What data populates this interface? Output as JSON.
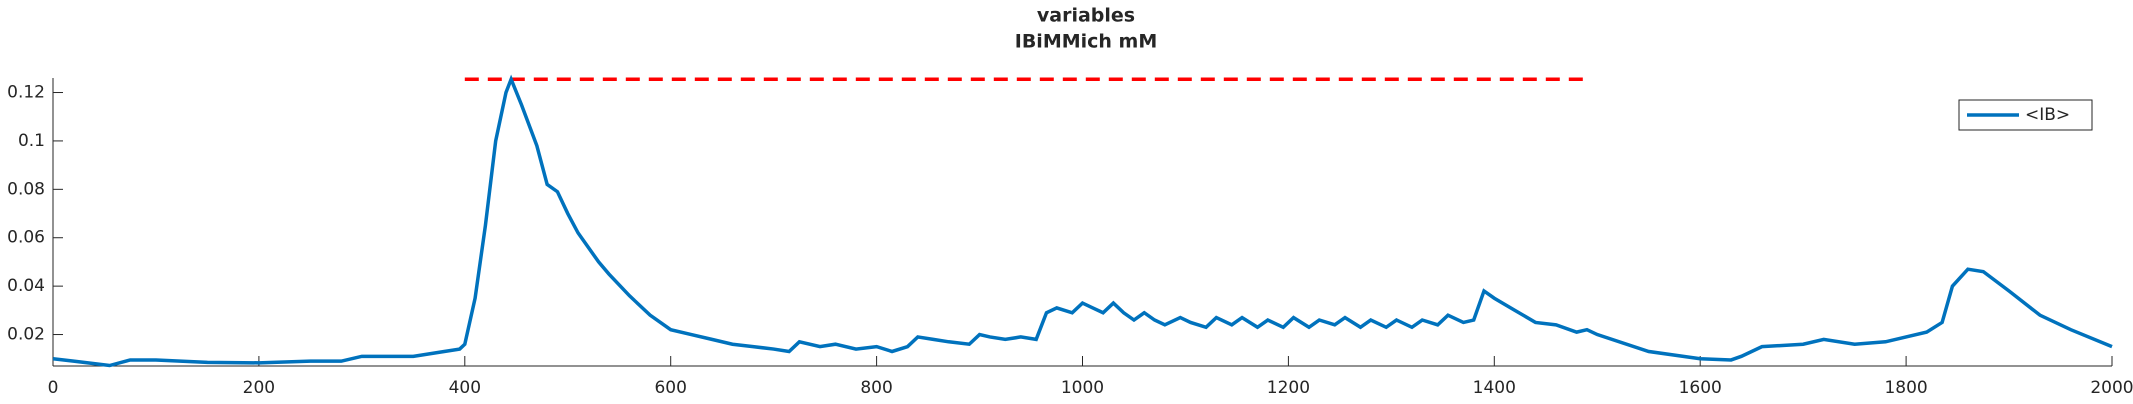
{
  "chart_data": {
    "type": "line",
    "title": "variables",
    "subtitle": "IBiMMich mM",
    "x": [
      0,
      20,
      40,
      55,
      75,
      100,
      150,
      200,
      250,
      280,
      300,
      350,
      380,
      395,
      400,
      410,
      420,
      430,
      440,
      445,
      455,
      470,
      480,
      490,
      500,
      510,
      530,
      540,
      560,
      580,
      600,
      620,
      640,
      660,
      680,
      700,
      715,
      725,
      745,
      760,
      780,
      800,
      815,
      830,
      840,
      855,
      870,
      890,
      900,
      910,
      925,
      940,
      955,
      965,
      975,
      990,
      1000,
      1010,
      1020,
      1030,
      1040,
      1050,
      1060,
      1070,
      1080,
      1095,
      1105,
      1120,
      1130,
      1145,
      1155,
      1170,
      1180,
      1195,
      1205,
      1220,
      1230,
      1245,
      1255,
      1270,
      1280,
      1295,
      1305,
      1320,
      1330,
      1345,
      1355,
      1370,
      1380,
      1390,
      1400,
      1420,
      1440,
      1460,
      1480,
      1490,
      1500,
      1550,
      1600,
      1630,
      1640,
      1660,
      1700,
      1720,
      1750,
      1780,
      1800,
      1820,
      1835,
      1845,
      1860,
      1875,
      1900,
      1930,
      1960,
      2000
    ],
    "series": [
      {
        "name": "<IB>",
        "color": "#0072bd",
        "values": [
          0.01,
          0.009,
          0.008,
          0.0072,
          0.0095,
          0.0095,
          0.0085,
          0.0083,
          0.009,
          0.009,
          0.011,
          0.011,
          0.013,
          0.014,
          0.016,
          0.035,
          0.065,
          0.1,
          0.12,
          0.1255,
          0.115,
          0.098,
          0.082,
          0.079,
          0.07,
          0.062,
          0.05,
          0.045,
          0.036,
          0.028,
          0.022,
          0.02,
          0.018,
          0.016,
          0.015,
          0.014,
          0.013,
          0.017,
          0.015,
          0.016,
          0.014,
          0.015,
          0.013,
          0.015,
          0.019,
          0.018,
          0.017,
          0.016,
          0.02,
          0.019,
          0.018,
          0.019,
          0.018,
          0.029,
          0.031,
          0.029,
          0.033,
          0.031,
          0.029,
          0.033,
          0.029,
          0.026,
          0.029,
          0.026,
          0.024,
          0.027,
          0.025,
          0.023,
          0.027,
          0.024,
          0.027,
          0.023,
          0.026,
          0.023,
          0.027,
          0.023,
          0.026,
          0.024,
          0.027,
          0.023,
          0.026,
          0.023,
          0.026,
          0.023,
          0.026,
          0.024,
          0.028,
          0.025,
          0.026,
          0.038,
          0.035,
          0.03,
          0.025,
          0.024,
          0.021,
          0.022,
          0.02,
          0.013,
          0.01,
          0.0095,
          0.011,
          0.015,
          0.016,
          0.018,
          0.016,
          0.017,
          0.019,
          0.021,
          0.025,
          0.04,
          0.047,
          0.046,
          0.038,
          0.028,
          0.022,
          0.015
        ]
      }
    ],
    "reference_line": {
      "x": [
        400,
        1490
      ],
      "y": 0.1255,
      "color": "#ff0000",
      "dashed": true
    },
    "xlim": [
      0,
      2000
    ],
    "xticks": [
      0,
      200,
      400,
      600,
      800,
      1000,
      1200,
      1400,
      1600,
      1800,
      2000
    ],
    "ylim": [
      0.007,
      0.126
    ],
    "yticks": [
      0.02,
      0.04,
      0.06,
      0.08,
      0.1,
      0.12
    ],
    "legend": "upper right"
  }
}
